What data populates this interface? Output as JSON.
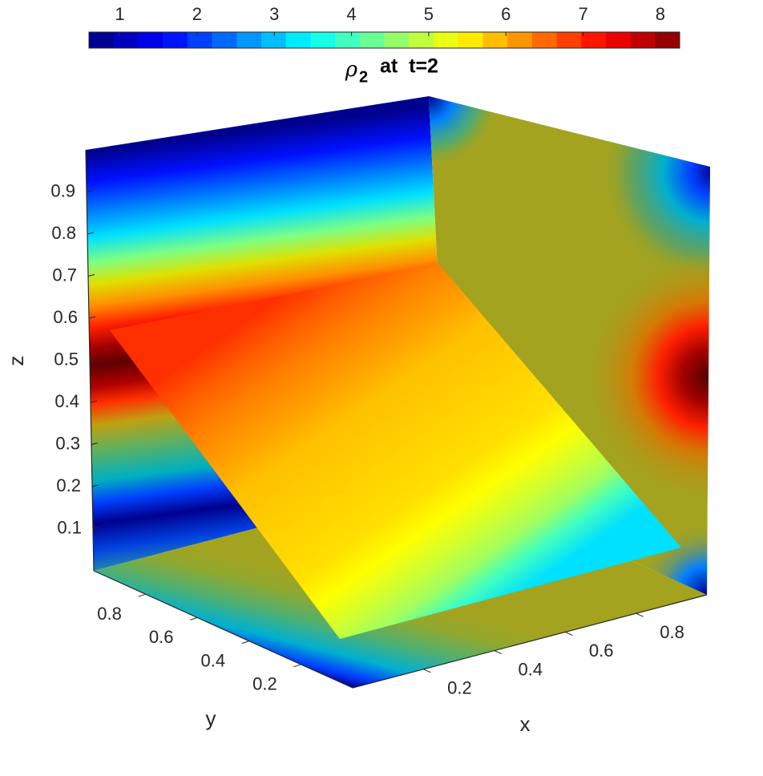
{
  "chart_data": {
    "type": "slice",
    "title": {
      "symbol": "ρ",
      "subscript": "2",
      "text": "at  t=2"
    },
    "xlabel": "x",
    "ylabel": "y",
    "zlabel": "z",
    "xlim": [
      0,
      1
    ],
    "ylim": [
      0,
      1
    ],
    "zlim": [
      0,
      1
    ],
    "xticks": [
      0.2,
      0.4,
      0.6,
      0.8
    ],
    "yticks": [
      0.2,
      0.4,
      0.6,
      0.8
    ],
    "zticks": [
      0.1,
      0.2,
      0.3,
      0.4,
      0.5,
      0.6,
      0.7,
      0.8,
      0.9
    ],
    "colormap": "jet",
    "clim": [
      0.6,
      8.25
    ],
    "cticks": [
      1,
      2,
      3,
      4,
      5,
      6,
      7,
      8
    ]
  }
}
